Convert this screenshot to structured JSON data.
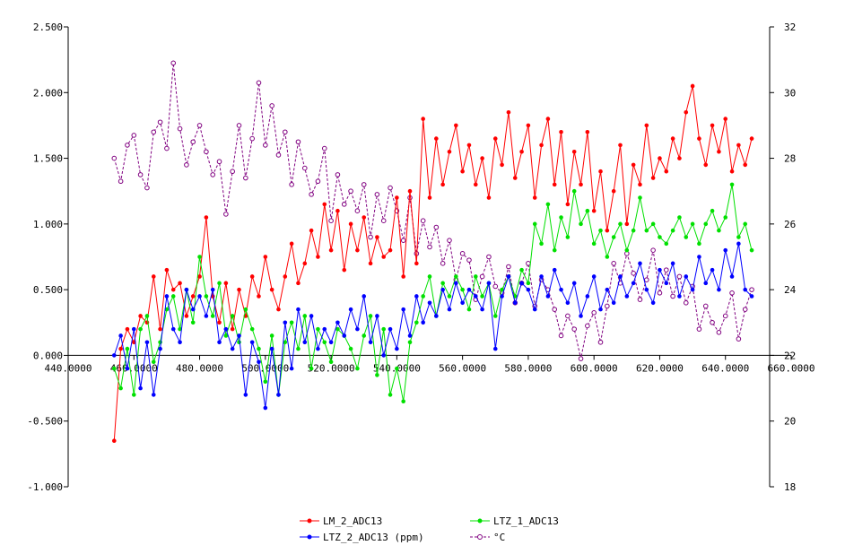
{
  "chart_data": {
    "type": "line",
    "title": "",
    "xlabel": "",
    "ylabel": "",
    "y2label": "",
    "xlim": [
      440,
      660
    ],
    "ylim": [
      -1.0,
      2.5
    ],
    "y2lim": [
      18,
      32
    ],
    "x_tick_values": [
      440,
      460,
      480,
      500,
      520,
      540,
      560,
      580,
      600,
      620,
      640,
      660
    ],
    "x_tick_labels": [
      "440.0000",
      "460.0000",
      "480.0000",
      "500.0000",
      "520.0000",
      "540.0000",
      "560.0000",
      "580.0000",
      "600.0000",
      "620.0000",
      "640.0000",
      "660.0000"
    ],
    "y_tick_values": [
      -1.0,
      -0.5,
      0.0,
      0.5,
      1.0,
      1.5,
      2.0,
      2.5
    ],
    "y_tick_labels": [
      "-1.000",
      "-0.500",
      "0.000",
      "0.500",
      "1.000",
      "1.500",
      "2.000",
      "2.500"
    ],
    "y2_tick_values": [
      18,
      20,
      22,
      24,
      26,
      28,
      30,
      32
    ],
    "y2_tick_labels": [
      "18",
      "20",
      "22",
      "24",
      "26",
      "28",
      "30",
      "32"
    ],
    "grid": false,
    "legend_position": "bottom",
    "series": [
      {
        "name": "LM_2_ADC13",
        "axis": "left",
        "color": "#ff0000",
        "marker": "filled-circle",
        "line": "solid",
        "x": [
          454,
          456,
          458,
          460,
          462,
          464,
          466,
          468,
          470,
          472,
          474,
          476,
          478,
          480,
          482,
          484,
          486,
          488,
          490,
          492,
          494,
          496,
          498,
          500,
          502,
          504,
          506,
          508,
          510,
          512,
          514,
          516,
          518,
          520,
          522,
          524,
          526,
          528,
          530,
          532,
          534,
          536,
          538,
          540,
          542,
          544,
          546,
          548,
          550,
          552,
          554,
          556,
          558,
          560,
          562,
          564,
          566,
          568,
          570,
          572,
          574,
          576,
          578,
          580,
          582,
          584,
          586,
          588,
          590,
          592,
          594,
          596,
          598,
          600,
          602,
          604,
          606,
          608,
          610,
          612,
          614,
          616,
          618,
          620,
          622,
          624,
          626,
          628,
          630,
          632,
          634,
          636,
          638,
          640,
          642,
          644,
          646,
          648
        ],
        "values": [
          -0.65,
          0.05,
          0.2,
          0.1,
          0.3,
          0.25,
          0.6,
          0.2,
          0.65,
          0.5,
          0.55,
          0.3,
          0.45,
          0.6,
          1.05,
          0.45,
          0.25,
          0.55,
          0.2,
          0.5,
          0.3,
          0.6,
          0.45,
          0.75,
          0.5,
          0.35,
          0.6,
          0.85,
          0.55,
          0.7,
          0.95,
          0.75,
          1.15,
          0.8,
          1.1,
          0.65,
          1.0,
          0.8,
          1.05,
          0.7,
          0.9,
          0.75,
          0.8,
          1.2,
          0.6,
          1.25,
          0.7,
          1.8,
          1.2,
          1.65,
          1.3,
          1.55,
          1.75,
          1.4,
          1.6,
          1.3,
          1.5,
          1.2,
          1.65,
          1.45,
          1.85,
          1.35,
          1.55,
          1.75,
          1.2,
          1.6,
          1.8,
          1.3,
          1.7,
          1.15,
          1.55,
          1.3,
          1.7,
          1.1,
          1.4,
          0.95,
          1.25,
          1.6,
          1.0,
          1.45,
          1.3,
          1.75,
          1.35,
          1.5,
          1.4,
          1.65,
          1.5,
          1.85,
          2.05,
          1.65,
          1.45,
          1.75,
          1.55,
          1.8,
          1.4,
          1.6,
          1.45,
          1.65
        ],
        "note": ""
      },
      {
        "name": "LTZ_1_ADC13",
        "axis": "left",
        "color": "#00e000",
        "marker": "filled-circle",
        "line": "solid",
        "x": [
          454,
          456,
          458,
          460,
          462,
          464,
          466,
          468,
          470,
          472,
          474,
          476,
          478,
          480,
          482,
          484,
          486,
          488,
          490,
          492,
          494,
          496,
          498,
          500,
          502,
          504,
          506,
          508,
          510,
          512,
          514,
          516,
          518,
          520,
          522,
          524,
          526,
          528,
          530,
          532,
          534,
          536,
          538,
          540,
          542,
          544,
          546,
          548,
          550,
          552,
          554,
          556,
          558,
          560,
          562,
          564,
          566,
          568,
          570,
          572,
          574,
          576,
          578,
          580,
          582,
          584,
          586,
          588,
          590,
          592,
          594,
          596,
          598,
          600,
          602,
          604,
          606,
          608,
          610,
          612,
          614,
          616,
          618,
          620,
          622,
          624,
          626,
          628,
          630,
          632,
          634,
          636,
          638,
          640,
          642,
          644,
          646,
          648
        ],
        "values": [
          -0.1,
          -0.25,
          0.05,
          -0.3,
          0.2,
          0.3,
          -0.05,
          0.1,
          0.35,
          0.45,
          0.2,
          0.5,
          0.25,
          0.75,
          0.45,
          0.3,
          0.55,
          0.15,
          0.3,
          0.1,
          0.35,
          0.2,
          0.05,
          -0.2,
          0.15,
          -0.3,
          0.1,
          0.25,
          0.05,
          0.3,
          -0.1,
          0.2,
          0.1,
          -0.05,
          0.2,
          0.15,
          0.05,
          -0.1,
          0.15,
          0.3,
          -0.15,
          0.2,
          -0.3,
          -0.1,
          -0.35,
          0.1,
          0.25,
          0.45,
          0.6,
          0.3,
          0.55,
          0.45,
          0.6,
          0.5,
          0.35,
          0.6,
          0.45,
          0.55,
          0.3,
          0.5,
          0.6,
          0.45,
          0.65,
          0.55,
          1.0,
          0.85,
          1.15,
          0.8,
          1.05,
          0.9,
          1.25,
          1.0,
          1.1,
          0.85,
          0.95,
          0.75,
          0.9,
          1.0,
          0.8,
          0.95,
          1.2,
          0.95,
          1.0,
          0.9,
          0.85,
          0.95,
          1.05,
          0.9,
          1.0,
          0.85,
          1.0,
          1.1,
          0.95,
          1.05,
          1.3,
          0.9,
          1.0,
          0.8
        ],
        "note": ""
      },
      {
        "name": "LTZ_2_ADC13 (ppm)",
        "axis": "left",
        "color": "#0000ff",
        "marker": "filled-circle",
        "line": "solid",
        "x": [
          454,
          456,
          458,
          460,
          462,
          464,
          466,
          468,
          470,
          472,
          474,
          476,
          478,
          480,
          482,
          484,
          486,
          488,
          490,
          492,
          494,
          496,
          498,
          500,
          502,
          504,
          506,
          508,
          510,
          512,
          514,
          516,
          518,
          520,
          522,
          524,
          526,
          528,
          530,
          532,
          534,
          536,
          538,
          540,
          542,
          544,
          546,
          548,
          550,
          552,
          554,
          556,
          558,
          560,
          562,
          564,
          566,
          568,
          570,
          572,
          574,
          576,
          578,
          580,
          582,
          584,
          586,
          588,
          590,
          592,
          594,
          596,
          598,
          600,
          602,
          604,
          606,
          608,
          610,
          612,
          614,
          616,
          618,
          620,
          622,
          624,
          626,
          628,
          630,
          632,
          634,
          636,
          638,
          640,
          642,
          644,
          646,
          648
        ],
        "values": [
          0.0,
          0.15,
          -0.1,
          0.2,
          -0.25,
          0.1,
          -0.3,
          0.05,
          0.45,
          0.2,
          0.1,
          0.5,
          0.35,
          0.45,
          0.3,
          0.5,
          0.1,
          0.2,
          0.05,
          0.15,
          -0.3,
          0.1,
          -0.05,
          -0.4,
          0.05,
          -0.3,
          0.25,
          -0.1,
          0.35,
          0.1,
          0.3,
          0.05,
          0.2,
          0.1,
          0.25,
          0.15,
          0.35,
          0.2,
          0.45,
          0.1,
          0.3,
          0.0,
          0.2,
          0.05,
          0.35,
          0.15,
          0.45,
          0.25,
          0.4,
          0.3,
          0.5,
          0.35,
          0.55,
          0.4,
          0.5,
          0.45,
          0.35,
          0.55,
          0.05,
          0.45,
          0.6,
          0.4,
          0.55,
          0.5,
          0.35,
          0.6,
          0.45,
          0.65,
          0.5,
          0.4,
          0.55,
          0.3,
          0.45,
          0.6,
          0.35,
          0.5,
          0.4,
          0.6,
          0.45,
          0.55,
          0.7,
          0.5,
          0.4,
          0.65,
          0.55,
          0.7,
          0.45,
          0.6,
          0.5,
          0.75,
          0.55,
          0.65,
          0.5,
          0.8,
          0.6,
          0.85,
          0.5,
          0.45
        ],
        "note": ""
      },
      {
        "name": "°C",
        "axis": "right",
        "color": "#800080",
        "marker": "open-circle",
        "line": "dashed",
        "x": [
          454,
          456,
          458,
          460,
          462,
          464,
          466,
          468,
          470,
          472,
          474,
          476,
          478,
          480,
          482,
          484,
          486,
          488,
          490,
          492,
          494,
          496,
          498,
          500,
          502,
          504,
          506,
          508,
          510,
          512,
          514,
          516,
          518,
          520,
          522,
          524,
          526,
          528,
          530,
          532,
          534,
          536,
          538,
          540,
          542,
          544,
          546,
          548,
          550,
          552,
          554,
          556,
          558,
          560,
          562,
          564,
          566,
          568,
          570,
          572,
          574,
          576,
          578,
          580,
          582,
          584,
          586,
          588,
          590,
          592,
          594,
          596,
          598,
          600,
          602,
          604,
          606,
          608,
          610,
          612,
          614,
          616,
          618,
          620,
          622,
          624,
          626,
          628,
          630,
          632,
          634,
          636,
          638,
          640,
          642,
          644,
          646,
          648
        ],
        "values": [
          28.0,
          27.3,
          28.4,
          28.7,
          27.5,
          27.1,
          28.8,
          29.1,
          28.3,
          30.9,
          28.9,
          27.8,
          28.5,
          29.0,
          28.2,
          27.5,
          27.9,
          26.3,
          27.6,
          29.0,
          27.4,
          28.6,
          30.3,
          28.4,
          29.6,
          28.1,
          28.8,
          27.2,
          28.5,
          27.7,
          26.9,
          27.3,
          28.3,
          26.1,
          27.5,
          26.6,
          27.0,
          26.4,
          27.2,
          25.6,
          26.9,
          26.1,
          27.1,
          26.4,
          25.5,
          26.8,
          25.1,
          26.1,
          25.3,
          25.9,
          24.8,
          25.5,
          24.3,
          25.1,
          24.9,
          23.7,
          24.4,
          25.0,
          24.1,
          23.9,
          24.7,
          23.6,
          24.2,
          24.8,
          23.5,
          24.3,
          24.0,
          23.4,
          22.6,
          23.2,
          22.8,
          21.9,
          22.9,
          23.3,
          22.4,
          23.5,
          24.8,
          24.2,
          25.1,
          24.5,
          23.7,
          24.3,
          25.2,
          23.9,
          24.6,
          23.8,
          24.4,
          23.6,
          24.1,
          22.8,
          23.5,
          23.0,
          22.7,
          23.2,
          23.9,
          22.5,
          23.4,
          24.0
        ],
        "note": ""
      }
    ]
  },
  "legend": {
    "items": [
      {
        "label": "LM_2_ADC13",
        "color": "#ff0000"
      },
      {
        "label": "LTZ_1_ADC13",
        "color": "#00e000"
      },
      {
        "label": "LTZ_2_ADC13 (ppm)",
        "color": "#0000ff"
      },
      {
        "label": "°C",
        "color": "#800080"
      }
    ]
  }
}
